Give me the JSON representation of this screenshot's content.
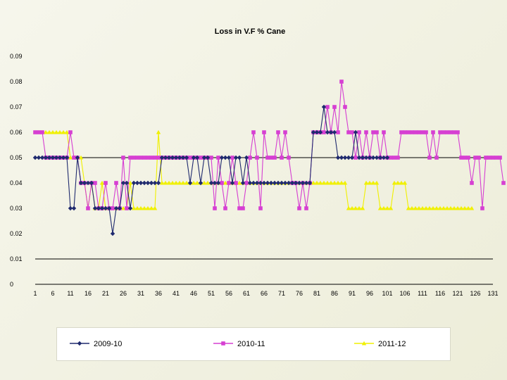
{
  "chart_data": {
    "type": "line",
    "title": "Loss in V.F % Cane",
    "xlabel": "",
    "ylabel": "",
    "ylim": [
      0,
      0.09
    ],
    "yticks": [
      0,
      0.01,
      0.02,
      0.03,
      0.04,
      0.05,
      0.06,
      0.07,
      0.08,
      0.09
    ],
    "ytick_labels": [
      "0",
      "0.01",
      "0.02",
      "0.03",
      "0.04",
      "0.05",
      "0.06",
      "0.07",
      "0.08",
      "0.09"
    ],
    "xlim": [
      1,
      131
    ],
    "xticks": [
      1,
      6,
      11,
      16,
      21,
      26,
      31,
      36,
      41,
      46,
      51,
      56,
      61,
      66,
      71,
      76,
      81,
      86,
      91,
      96,
      101,
      106,
      111,
      116,
      121,
      126,
      131
    ],
    "xtick_labels": [
      "1",
      "6",
      "11",
      "16",
      "21",
      "26",
      "31",
      "36",
      "41",
      "46",
      "51",
      "56",
      "61",
      "66",
      "71",
      "76",
      "81",
      "86",
      "91",
      "96",
      "101",
      "106",
      "111",
      "116",
      "121",
      "126",
      "131"
    ],
    "gridlines_y": [
      0.01,
      0.05
    ],
    "legend_position": "bottom",
    "series": [
      {
        "name": "2009-10",
        "color": "#1f2a6e",
        "marker": "diamond",
        "values": [
          0.05,
          0.05,
          0.05,
          0.05,
          0.05,
          0.05,
          0.05,
          0.05,
          0.05,
          0.05,
          0.03,
          0.03,
          0.05,
          0.04,
          0.04,
          0.04,
          0.04,
          0.03,
          0.03,
          0.03,
          0.03,
          0.03,
          0.02,
          0.03,
          0.03,
          0.04,
          0.04,
          0.03,
          0.04,
          0.04,
          0.04,
          0.04,
          0.04,
          0.04,
          0.04,
          0.04,
          0.05,
          0.05,
          0.05,
          0.05,
          0.05,
          0.05,
          0.05,
          0.05,
          0.04,
          0.05,
          0.05,
          0.04,
          0.05,
          0.05,
          0.04,
          0.04,
          0.04,
          0.05,
          0.05,
          0.05,
          0.04,
          0.05,
          0.05,
          0.04,
          0.05,
          0.04,
          0.04,
          0.04,
          0.04,
          0.04,
          0.04,
          0.04,
          0.04,
          0.04,
          0.04,
          0.04,
          0.04,
          0.04,
          0.04,
          0.04,
          0.04,
          0.04,
          0.04,
          0.06,
          0.06,
          0.06,
          0.07,
          0.06,
          0.06,
          0.06,
          0.05,
          0.05,
          0.05,
          0.05,
          0.05,
          0.06,
          0.05,
          0.05,
          0.05,
          0.05,
          0.05,
          0.05,
          0.05,
          0.05,
          0.05
        ]
      },
      {
        "name": "2010-11",
        "color": "#d63fd2",
        "marker": "square",
        "values": [
          0.06,
          0.06,
          0.06,
          0.05,
          0.05,
          0.05,
          0.05,
          0.05,
          0.05,
          0.05,
          0.06,
          0.05,
          0.05,
          0.04,
          0.04,
          0.03,
          0.04,
          0.04,
          0.03,
          0.03,
          0.04,
          0.03,
          0.03,
          0.04,
          0.03,
          0.05,
          0.03,
          0.05,
          0.05,
          0.05,
          0.05,
          0.05,
          0.05,
          0.05,
          0.05,
          0.05,
          0.05,
          0.05,
          0.05,
          0.05,
          0.05,
          0.05,
          0.05,
          0.05,
          0.05,
          0.05,
          0.05,
          0.05,
          0.05,
          0.05,
          0.05,
          0.03,
          0.05,
          0.04,
          0.03,
          0.04,
          0.05,
          0.04,
          0.03,
          0.03,
          0.04,
          0.05,
          0.06,
          0.05,
          0.03,
          0.06,
          0.05,
          0.05,
          0.05,
          0.06,
          0.05,
          0.06,
          0.05,
          0.04,
          0.04,
          0.03,
          0.04,
          0.03,
          0.04,
          0.06,
          0.06,
          0.06,
          0.06,
          0.07,
          0.06,
          0.07,
          0.06,
          0.08,
          0.07,
          0.06,
          0.06,
          0.05,
          0.06,
          0.05,
          0.06,
          0.05,
          0.06,
          0.06,
          0.05,
          0.06,
          0.05,
          0.05,
          0.05,
          0.05,
          0.06,
          0.06,
          0.06,
          0.06,
          0.06,
          0.06,
          0.06,
          0.06,
          0.05,
          0.06,
          0.05,
          0.06,
          0.06,
          0.06,
          0.06,
          0.06,
          0.06,
          0.05,
          0.05,
          0.05,
          0.04,
          0.05,
          0.05,
          0.03,
          0.05,
          0.05,
          0.05,
          0.05,
          0.05,
          0.04
        ]
      },
      {
        "name": "2011-12",
        "color": "#f0f000",
        "marker": "triangle",
        "values": [
          0.06,
          0.06,
          0.06,
          0.06,
          0.06,
          0.06,
          0.06,
          0.06,
          0.06,
          0.06,
          0.05,
          0.05,
          0.05,
          0.05,
          0.04,
          0.03,
          0.04,
          0.03,
          0.03,
          0.04,
          0.03,
          0.03,
          0.03,
          0.03,
          0.03,
          0.03,
          0.03,
          0.04,
          0.03,
          0.03,
          0.03,
          0.03,
          0.03,
          0.03,
          0.03,
          0.06,
          0.04,
          0.04,
          0.04,
          0.04,
          0.04,
          0.04,
          0.04,
          0.04,
          0.04,
          0.04,
          0.04,
          0.04,
          0.04,
          0.04,
          0.04,
          0.04,
          0.04,
          0.04,
          0.04,
          0.04,
          0.04,
          0.04,
          0.04,
          0.04,
          0.04,
          0.04,
          0.04,
          0.04,
          0.04,
          0.04,
          0.04,
          0.04,
          0.04,
          0.04,
          0.04,
          0.04,
          0.04,
          0.04,
          0.04,
          0.04,
          0.04,
          0.04,
          0.04,
          0.04,
          0.04,
          0.04,
          0.04,
          0.04,
          0.04,
          0.04,
          0.04,
          0.04,
          0.04,
          0.03,
          0.03,
          0.03,
          0.03,
          0.03,
          0.04,
          0.04,
          0.04,
          0.04,
          0.03,
          0.03,
          0.03,
          0.03,
          0.04,
          0.04,
          0.04,
          0.04,
          0.03,
          0.03,
          0.03,
          0.03,
          0.03,
          0.03,
          0.03,
          0.03,
          0.03,
          0.03,
          0.03,
          0.03,
          0.03,
          0.03,
          0.03,
          0.03,
          0.03,
          0.03,
          0.03
        ]
      }
    ]
  },
  "legend": {
    "items": [
      {
        "label": "2009-10",
        "color": "#1f2a6e",
        "marker": "diamond"
      },
      {
        "label": "2010-11",
        "color": "#d63fd2",
        "marker": "square"
      },
      {
        "label": "2011-12",
        "color": "#f0f000",
        "marker": "triangle"
      }
    ]
  }
}
